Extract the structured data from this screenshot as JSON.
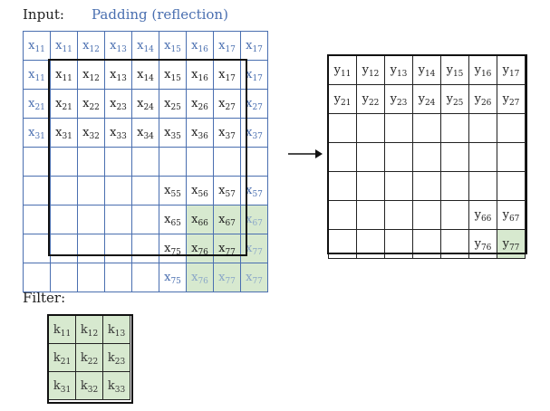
{
  "labels": {
    "input": "Input:",
    "padding": "Padding (reflection)",
    "filter": "Filter:"
  },
  "input_grid": [
    [
      {
        "v": "x",
        "s": "11",
        "c": "pad"
      },
      {
        "v": "x",
        "s": "11",
        "c": "pad"
      },
      {
        "v": "x",
        "s": "12",
        "c": "pad"
      },
      {
        "v": "x",
        "s": "13",
        "c": "pad"
      },
      {
        "v": "x",
        "s": "14",
        "c": "pad"
      },
      {
        "v": "x",
        "s": "15",
        "c": "pad"
      },
      {
        "v": "x",
        "s": "16",
        "c": "pad"
      },
      {
        "v": "x",
        "s": "17",
        "c": "pad"
      },
      {
        "v": "x",
        "s": "17",
        "c": "pad"
      }
    ],
    [
      {
        "v": "x",
        "s": "11",
        "c": "pad"
      },
      {
        "v": "x",
        "s": "11"
      },
      {
        "v": "x",
        "s": "12"
      },
      {
        "v": "x",
        "s": "13"
      },
      {
        "v": "x",
        "s": "14"
      },
      {
        "v": "x",
        "s": "15"
      },
      {
        "v": "x",
        "s": "16"
      },
      {
        "v": "x",
        "s": "17"
      },
      {
        "v": "x",
        "s": "17",
        "c": "pad"
      }
    ],
    [
      {
        "v": "x",
        "s": "21",
        "c": "pad"
      },
      {
        "v": "x",
        "s": "21"
      },
      {
        "v": "x",
        "s": "22"
      },
      {
        "v": "x",
        "s": "23"
      },
      {
        "v": "x",
        "s": "24"
      },
      {
        "v": "x",
        "s": "25"
      },
      {
        "v": "x",
        "s": "26"
      },
      {
        "v": "x",
        "s": "27"
      },
      {
        "v": "x",
        "s": "27",
        "c": "pad"
      }
    ],
    [
      {
        "v": "x",
        "s": "31",
        "c": "pad"
      },
      {
        "v": "x",
        "s": "31"
      },
      {
        "v": "x",
        "s": "32"
      },
      {
        "v": "x",
        "s": "33"
      },
      {
        "v": "x",
        "s": "34"
      },
      {
        "v": "x",
        "s": "35"
      },
      {
        "v": "x",
        "s": "36"
      },
      {
        "v": "x",
        "s": "37"
      },
      {
        "v": "x",
        "s": "37",
        "c": "pad"
      }
    ],
    [
      {
        "v": ""
      },
      {
        "v": ""
      },
      {
        "v": ""
      },
      {
        "v": ""
      },
      {
        "v": ""
      },
      {
        "v": ""
      },
      {
        "v": ""
      },
      {
        "v": ""
      },
      {
        "v": ""
      }
    ],
    [
      {
        "v": ""
      },
      {
        "v": ""
      },
      {
        "v": ""
      },
      {
        "v": ""
      },
      {
        "v": ""
      },
      {
        "v": "x",
        "s": "55"
      },
      {
        "v": "x",
        "s": "56"
      },
      {
        "v": "x",
        "s": "57"
      },
      {
        "v": "x",
        "s": "57",
        "c": "pad"
      }
    ],
    [
      {
        "v": ""
      },
      {
        "v": ""
      },
      {
        "v": ""
      },
      {
        "v": ""
      },
      {
        "v": ""
      },
      {
        "v": "x",
        "s": "65"
      },
      {
        "v": "x",
        "s": "66",
        "c": "g"
      },
      {
        "v": "x",
        "s": "67",
        "c": "g"
      },
      {
        "v": "x",
        "s": "67",
        "c": "g fpad"
      }
    ],
    [
      {
        "v": ""
      },
      {
        "v": ""
      },
      {
        "v": ""
      },
      {
        "v": ""
      },
      {
        "v": ""
      },
      {
        "v": "x",
        "s": "75"
      },
      {
        "v": "x",
        "s": "76",
        "c": "g"
      },
      {
        "v": "x",
        "s": "77",
        "c": "g"
      },
      {
        "v": "x",
        "s": "77",
        "c": "g fpad"
      }
    ],
    [
      {
        "v": ""
      },
      {
        "v": ""
      },
      {
        "v": ""
      },
      {
        "v": ""
      },
      {
        "v": ""
      },
      {
        "v": "x",
        "s": "75",
        "c": "pad"
      },
      {
        "v": "x",
        "s": "76",
        "c": "g fpad"
      },
      {
        "v": "x",
        "s": "77",
        "c": "g fpad"
      },
      {
        "v": "x",
        "s": "77",
        "c": "g fpad"
      }
    ]
  ],
  "output_grid": [
    [
      {
        "v": "y",
        "s": "11"
      },
      {
        "v": "y",
        "s": "12"
      },
      {
        "v": "y",
        "s": "13"
      },
      {
        "v": "y",
        "s": "14"
      },
      {
        "v": "y",
        "s": "15"
      },
      {
        "v": "y",
        "s": "16"
      },
      {
        "v": "y",
        "s": "17"
      }
    ],
    [
      {
        "v": "y",
        "s": "21"
      },
      {
        "v": "y",
        "s": "22"
      },
      {
        "v": "y",
        "s": "23"
      },
      {
        "v": "y",
        "s": "24"
      },
      {
        "v": "y",
        "s": "25"
      },
      {
        "v": "y",
        "s": "26"
      },
      {
        "v": "y",
        "s": "27"
      }
    ],
    [
      {
        "v": ""
      },
      {
        "v": ""
      },
      {
        "v": ""
      },
      {
        "v": ""
      },
      {
        "v": ""
      },
      {
        "v": ""
      },
      {
        "v": ""
      }
    ],
    [
      {
        "v": ""
      },
      {
        "v": ""
      },
      {
        "v": ""
      },
      {
        "v": ""
      },
      {
        "v": ""
      },
      {
        "v": ""
      },
      {
        "v": ""
      }
    ],
    [
      {
        "v": ""
      },
      {
        "v": ""
      },
      {
        "v": ""
      },
      {
        "v": ""
      },
      {
        "v": ""
      },
      {
        "v": ""
      },
      {
        "v": ""
      }
    ],
    [
      {
        "v": ""
      },
      {
        "v": ""
      },
      {
        "v": ""
      },
      {
        "v": ""
      },
      {
        "v": ""
      },
      {
        "v": "y",
        "s": "66"
      },
      {
        "v": "y",
        "s": "67"
      }
    ],
    [
      {
        "v": ""
      },
      {
        "v": ""
      },
      {
        "v": ""
      },
      {
        "v": ""
      },
      {
        "v": ""
      },
      {
        "v": "y",
        "s": "76"
      },
      {
        "v": "y",
        "s": "77",
        "c": "g"
      }
    ]
  ],
  "filter_grid": [
    [
      {
        "v": "k",
        "s": "11"
      },
      {
        "v": "k",
        "s": "12"
      },
      {
        "v": "k",
        "s": "13"
      }
    ],
    [
      {
        "v": "k",
        "s": "21"
      },
      {
        "v": "k",
        "s": "22"
      },
      {
        "v": "k",
        "s": "23"
      }
    ],
    [
      {
        "v": "k",
        "s": "31"
      },
      {
        "v": "k",
        "s": "32"
      },
      {
        "v": "k",
        "s": "33"
      }
    ]
  ],
  "colors": {
    "padding_text": "#4a6fb0",
    "highlight": "#d7e9cf",
    "border": "#111111"
  }
}
